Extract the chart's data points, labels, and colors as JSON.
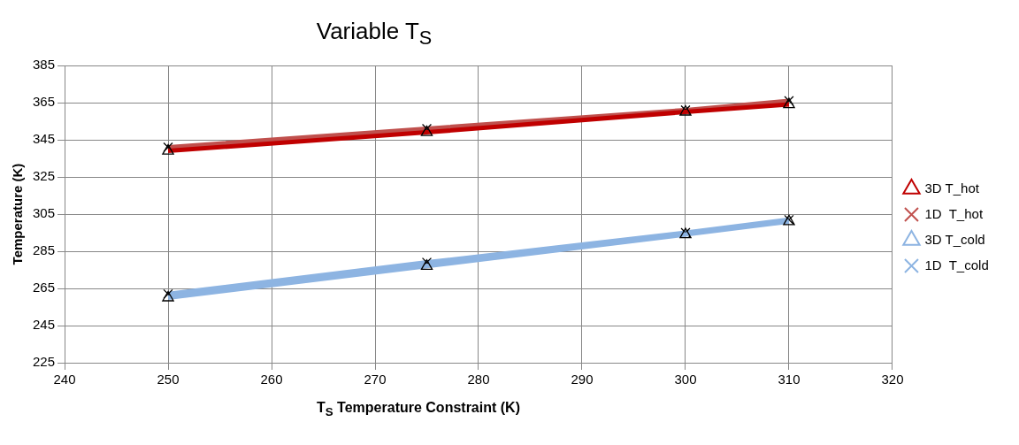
{
  "chart_data": {
    "type": "line",
    "title": "Variable T$_{S}$",
    "xlabel": "T$_{S}$ Temperature Constraint  (K)",
    "ylabel": "Temperature (K)",
    "x": [
      250,
      275,
      300,
      310
    ],
    "series": [
      {
        "name": "3D T_hot",
        "color": "#c00000",
        "marker": "triangle",
        "values": [
          339,
          349,
          360,
          364
        ]
      },
      {
        "name": "1D  T_hot",
        "color": "#c0504d",
        "marker": "cross",
        "values": [
          341,
          351,
          361,
          366
        ]
      },
      {
        "name": "3D T_cold",
        "color": "#8db4e2",
        "marker": "triangle",
        "values": [
          260,
          277,
          294,
          301
        ]
      },
      {
        "name": "1D  T_cold",
        "color": "#8db4e2",
        "marker": "cross",
        "values": [
          262,
          279,
          295,
          302
        ]
      }
    ],
    "xlim": [
      240,
      320
    ],
    "xticks": [
      240,
      250,
      260,
      270,
      280,
      290,
      300,
      310,
      320
    ],
    "ylim": [
      225,
      385
    ],
    "yticks": [
      225,
      245,
      265,
      285,
      305,
      325,
      345,
      365,
      385
    ],
    "grid": true,
    "legend": "right",
    "line_style": "solid"
  }
}
